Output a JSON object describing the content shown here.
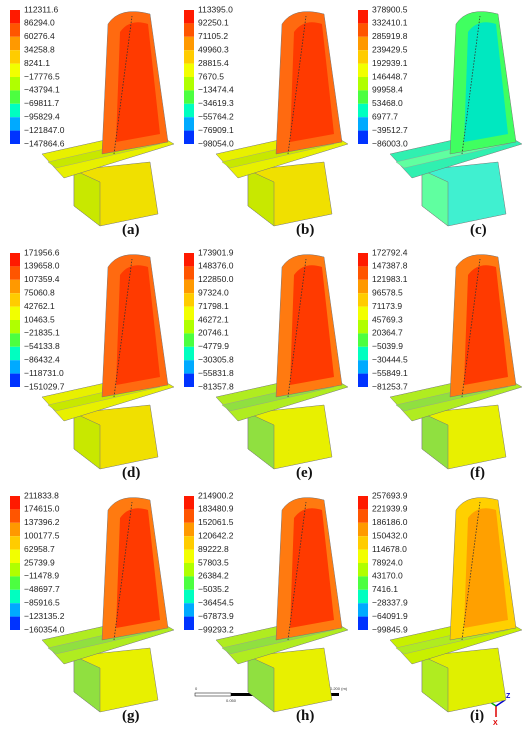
{
  "panels": [
    {
      "label": "(a)",
      "legend": [
        "112311.6",
        "86294.0",
        "60276.4",
        "34258.8",
        "8241.1",
        "−17776.5",
        "−43794.1",
        "−69811.7",
        "−95829.4",
        "−121847.0",
        "−147864.6"
      ]
    },
    {
      "label": "(b)",
      "legend": [
        "113395.0",
        "92250.1",
        "71105.2",
        "49960.3",
        "28815.4",
        "7670.5",
        "−13474.4",
        "−34619.3",
        "−55764.2",
        "−76909.1",
        "−98054.0"
      ]
    },
    {
      "label": "(c)",
      "legend": [
        "378900.5",
        "332410.1",
        "285919.8",
        "239429.5",
        "192939.1",
        "146448.7",
        "99958.4",
        "53468.0",
        "6977.7",
        "−39512.7",
        "−86003.0"
      ]
    },
    {
      "label": "(d)",
      "legend": [
        "171956.6",
        "139658.0",
        "107359.4",
        "75060.8",
        "42762.1",
        "10463.5",
        "−21835.1",
        "−54133.8",
        "−86432.4",
        "−118731.0",
        "−151029.7"
      ]
    },
    {
      "label": "(e)",
      "legend": [
        "173901.9",
        "148376.0",
        "122850.0",
        "97324.0",
        "71798.1",
        "46272.1",
        "20746.1",
        "−4779.9",
        "−30305.8",
        "−55831.8",
        "−81357.8"
      ]
    },
    {
      "label": "(f)",
      "legend": [
        "172792.4",
        "147387.8",
        "121983.1",
        "96578.5",
        "71173.9",
        "45769.3",
        "20364.7",
        "−5039.9",
        "−30444.5",
        "−55849.1",
        "−81253.7"
      ]
    },
    {
      "label": "(g)",
      "legend": [
        "211833.8",
        "174615.0",
        "137396.2",
        "100177.5",
        "62958.7",
        "25739.9",
        "−11478.9",
        "−48697.7",
        "−85916.5",
        "−123135.2",
        "−160354.0"
      ]
    },
    {
      "label": "(h)",
      "legend": [
        "214900.2",
        "183480.9",
        "152061.5",
        "120642.2",
        "89222.8",
        "57803.5",
        "26384.2",
        "−5035.2",
        "−36454.5",
        "−67873.9",
        "−99293.2"
      ]
    },
    {
      "label": "(i)",
      "legend": [
        "257693.9",
        "221939.9",
        "186186.0",
        "150432.0",
        "114678.0",
        "78924.0",
        "43170.0",
        "7416.1",
        "−28337.9",
        "−64091.9",
        "−99845.9"
      ]
    }
  ],
  "scale_bar": {
    "top": [
      "0",
      "0.100",
      "0.200 (m)"
    ],
    "bottom": [
      "0.050",
      "0.150"
    ]
  },
  "axes_triad": {
    "y": "Y",
    "z": "Z",
    "x": "X"
  }
}
